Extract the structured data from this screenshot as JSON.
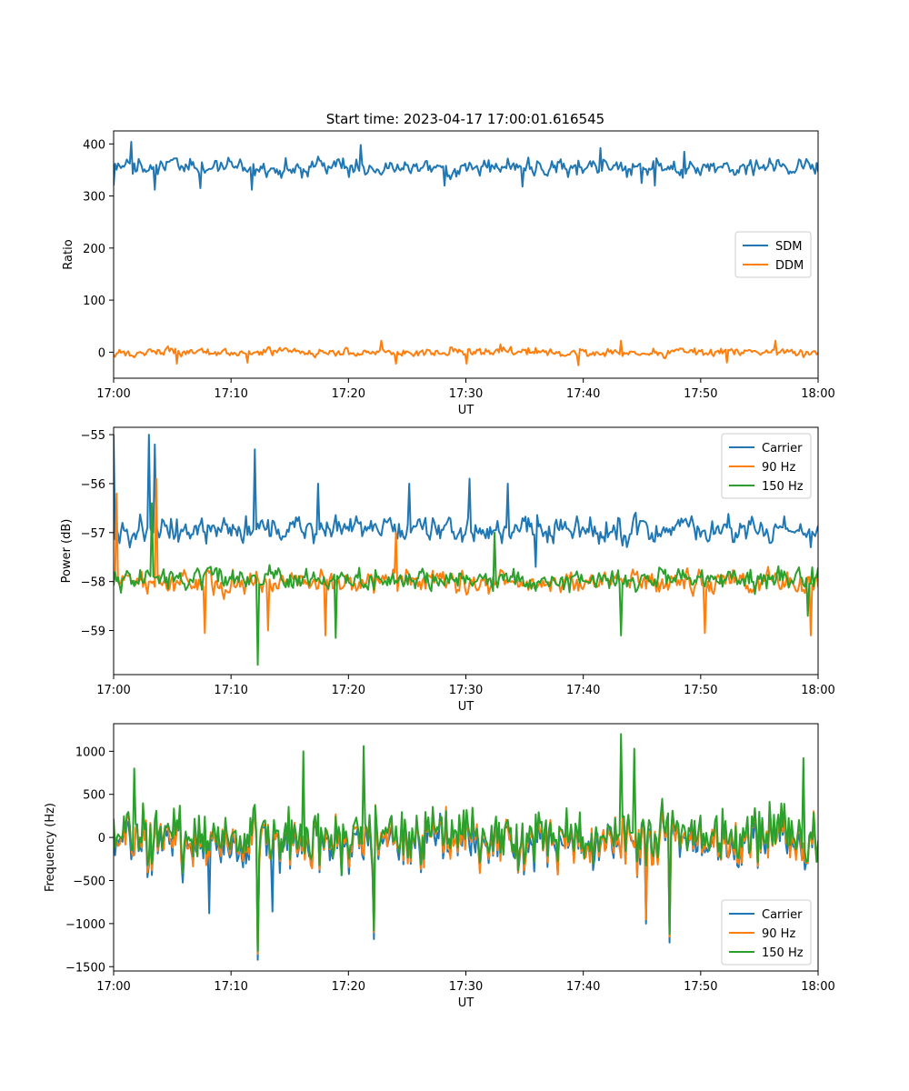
{
  "figure": {
    "title": "Start time: 2023-04-17 17:00:01.616545"
  },
  "chart_data": [
    {
      "type": "line",
      "xlabel": "UT",
      "ylabel": "Ratio",
      "xlim": [
        "17:00",
        "18:00"
      ],
      "ylim": [
        -50,
        425
      ],
      "xticks": [
        "17:00",
        "17:10",
        "17:20",
        "17:30",
        "17:40",
        "17:50",
        "18:00"
      ],
      "yticks": [
        0,
        100,
        200,
        300,
        400
      ],
      "legend": "center-right",
      "series": [
        {
          "name": "SDM",
          "color": "#1f77b4",
          "mean": 355,
          "amplitude": 22,
          "min": 310,
          "max": 405,
          "spikes": [
            [
              0.0,
              320
            ],
            [
              0.025,
              404
            ],
            [
              0.058,
              312
            ],
            [
              0.124,
              315
            ],
            [
              0.197,
              312
            ],
            [
              0.35,
              398
            ],
            [
              0.47,
              320
            ],
            [
              0.58,
              318
            ],
            [
              0.69,
              392
            ],
            [
              0.75,
              325
            ],
            [
              0.768,
              320
            ],
            [
              0.81,
              385
            ]
          ]
        },
        {
          "name": "DDM",
          "color": "#ff7f0e",
          "mean": 0,
          "amplitude": 11,
          "min": -25,
          "max": 25,
          "spikes": [
            [
              0.09,
              -22
            ],
            [
              0.19,
              -20
            ],
            [
              0.38,
              22
            ],
            [
              0.4,
              -22
            ],
            [
              0.5,
              -22
            ],
            [
              0.55,
              15
            ],
            [
              0.66,
              -25
            ],
            [
              0.72,
              22
            ],
            [
              0.87,
              -20
            ],
            [
              0.94,
              22
            ]
          ]
        }
      ]
    },
    {
      "type": "line",
      "xlabel": "UT",
      "ylabel": "Power (dB)",
      "xlim": [
        "17:00",
        "18:00"
      ],
      "ylim": [
        -59.9,
        -54.85
      ],
      "xticks": [
        "17:00",
        "17:10",
        "17:20",
        "17:30",
        "17:40",
        "17:50",
        "18:00"
      ],
      "yticks": [
        -55,
        -56,
        -57,
        -58,
        -59
      ],
      "yticklabels": [
        "−55",
        "−56",
        "−57",
        "−58",
        "−59"
      ],
      "legend": "top-right",
      "series": [
        {
          "name": "Carrier",
          "color": "#1f77b4",
          "mean": -56.95,
          "amplitude": 0.35,
          "min": -57.9,
          "max": -55.0,
          "spikes": [
            [
              0.0,
              -55.0
            ],
            [
              0.05,
              -55.0
            ],
            [
              0.058,
              -55.2
            ],
            [
              0.2,
              -55.3
            ],
            [
              0.29,
              -56.0
            ],
            [
              0.42,
              -56.0
            ],
            [
              0.505,
              -55.9
            ],
            [
              0.56,
              -56.0
            ],
            [
              0.6,
              -57.7
            ],
            [
              0.99,
              -57.3
            ]
          ]
        },
        {
          "name": "90 Hz",
          "color": "#ff7f0e",
          "mean": -58.0,
          "amplitude": 0.3,
          "min": -59.1,
          "max": -55.9,
          "spikes": [
            [
              0.005,
              -56.2
            ],
            [
              0.06,
              -55.9
            ],
            [
              0.13,
              -59.05
            ],
            [
              0.22,
              -59.0
            ],
            [
              0.3,
              -59.1
            ],
            [
              0.4,
              -57.0
            ],
            [
              0.84,
              -59.05
            ],
            [
              0.99,
              -59.1
            ]
          ]
        },
        {
          "name": "150 Hz",
          "color": "#2ca02c",
          "mean": -57.95,
          "amplitude": 0.3,
          "min": -59.7,
          "max": -56.5,
          "spikes": [
            [
              0.055,
              -56.4
            ],
            [
              0.205,
              -59.7
            ],
            [
              0.315,
              -59.15
            ],
            [
              0.54,
              -57.0
            ],
            [
              0.72,
              -59.1
            ],
            [
              0.985,
              -58.7
            ]
          ]
        }
      ]
    },
    {
      "type": "line",
      "xlabel": "UT",
      "ylabel": "Frequency (Hz)",
      "xlim": [
        "17:00",
        "18:00"
      ],
      "ylim": [
        -1550,
        1320
      ],
      "xticks": [
        "17:00",
        "17:10",
        "17:20",
        "17:30",
        "17:40",
        "17:50",
        "18:00"
      ],
      "yticks": [
        1000,
        500,
        0,
        -500,
        -1000,
        -1500
      ],
      "yticklabels": [
        "1000",
        "500",
        "0",
        "−500",
        "−1000",
        "−1500"
      ],
      "legend": "bottom-right",
      "series": [
        {
          "name": "Carrier",
          "color": "#1f77b4",
          "mean": -60,
          "amplitude": 340,
          "min": -1420,
          "max": 1150,
          "spikes": [
            [
              0.205,
              -1420
            ],
            [
              0.37,
              -1180
            ],
            [
              0.755,
              -1000
            ],
            [
              0.79,
              -1220
            ],
            [
              0.135,
              -880
            ],
            [
              0.225,
              -860
            ]
          ]
        },
        {
          "name": "90 Hz",
          "color": "#ff7f0e",
          "mean": -30,
          "amplitude": 340,
          "min": -1350,
          "max": 1180,
          "spikes": [
            [
              0.205,
              -1350
            ],
            [
              0.37,
              -1100
            ],
            [
              0.755,
              -950
            ],
            [
              0.79,
              -1150
            ]
          ]
        },
        {
          "name": "150 Hz",
          "color": "#2ca02c",
          "mean": 20,
          "amplitude": 340,
          "min": -1320,
          "max": 1200,
          "spikes": [
            [
              0.03,
              800
            ],
            [
              0.205,
              -1320
            ],
            [
              0.27,
              1000
            ],
            [
              0.355,
              1060
            ],
            [
              0.37,
              -1080
            ],
            [
              0.72,
              1200
            ],
            [
              0.79,
              -1120
            ],
            [
              0.74,
              1030
            ],
            [
              0.98,
              920
            ]
          ]
        }
      ]
    }
  ]
}
